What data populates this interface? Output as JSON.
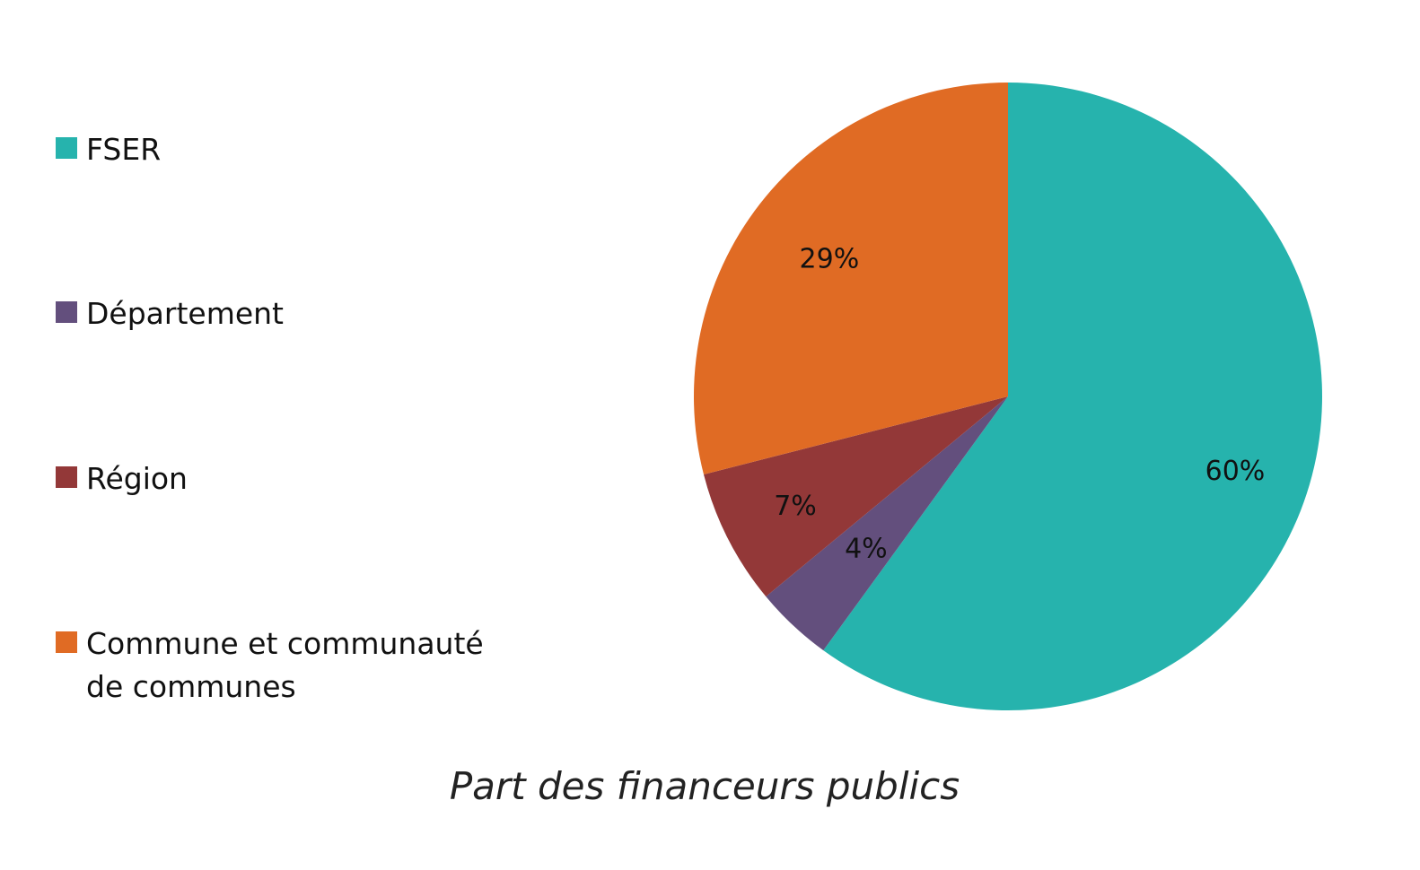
{
  "chart_data": {
    "type": "pie",
    "title": "Part des financeurs publics",
    "start_angle_deg": 0,
    "direction": "clockwise",
    "slices": [
      {
        "label": "FSER",
        "value": 60,
        "display": "60%",
        "color": "#26B3AD"
      },
      {
        "label": "Département",
        "value": 4,
        "display": "4%",
        "color": "#634F7D"
      },
      {
        "label": "Région",
        "value": 7,
        "display": "7%",
        "color": "#933838"
      },
      {
        "label": "Commune et communauté de communes",
        "value": 29,
        "display": "29%",
        "color": "#E06B24"
      }
    ],
    "legend_position": "left"
  },
  "legend": {
    "items": [
      {
        "label": "FSER",
        "color": "#26B3AD"
      },
      {
        "label": "Département",
        "color": "#634F7D"
      },
      {
        "label": "Région",
        "color": "#933838"
      },
      {
        "label_line1": "Commune et communauté",
        "label_line2": "de communes",
        "color": "#E06B24"
      }
    ]
  },
  "caption": "Part des financeurs publics"
}
